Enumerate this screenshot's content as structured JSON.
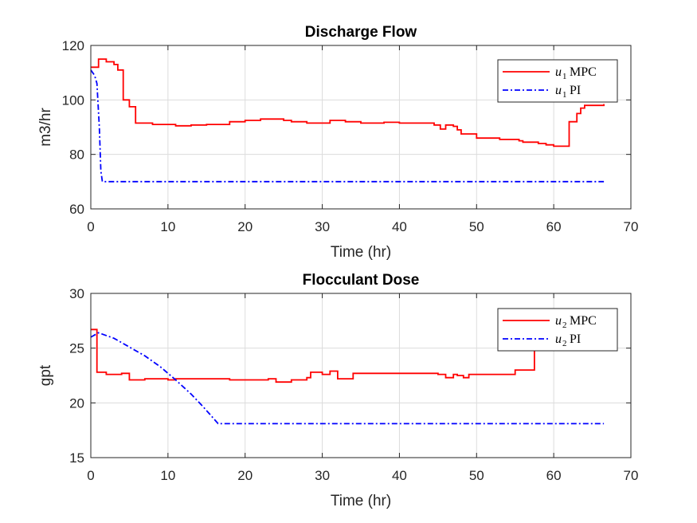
{
  "chart_data": [
    {
      "type": "line",
      "title": "Discharge Flow",
      "xlabel": "Time (hr)",
      "ylabel": "m3/hr",
      "xlim": [
        0,
        70
      ],
      "ylim": [
        60,
        120
      ],
      "xticks": [
        "0",
        "10",
        "20",
        "30",
        "40",
        "50",
        "60",
        "70"
      ],
      "yticks": [
        "60",
        "80",
        "100",
        "120"
      ],
      "grid": true,
      "legend_position": "top-right",
      "series": [
        {
          "name": "MPC",
          "legend_symbol": "u",
          "legend_subscript": "1",
          "color": "#ff0000",
          "style": "solid",
          "step": true,
          "x": [
            0,
            1,
            2,
            3,
            3.5,
            4.2,
            5,
            5.8,
            8,
            11,
            13,
            15,
            18,
            20,
            22,
            25,
            26,
            28,
            31,
            33,
            35,
            38,
            40,
            43,
            44.5,
            45.3,
            46,
            47,
            47.5,
            48,
            50,
            53,
            55.5,
            56,
            58,
            59,
            60,
            61.5,
            62,
            63,
            63.5,
            64,
            66.5
          ],
          "y": [
            112,
            115,
            114,
            113,
            111,
            100,
            97.5,
            91.5,
            91,
            90.5,
            90.8,
            91,
            92,
            92.5,
            93,
            92.5,
            92,
            91.5,
            92.5,
            92,
            91.5,
            91.8,
            91.5,
            91.5,
            90.8,
            89.3,
            90.8,
            90.3,
            89,
            87.5,
            86,
            85.5,
            85,
            84.5,
            84,
            83.5,
            83,
            83,
            92,
            95,
            97,
            98,
            98.5
          ]
        },
        {
          "name": "PI",
          "legend_symbol": "u",
          "legend_subscript": "1",
          "color": "#0000ff",
          "style": "dashdot",
          "step": false,
          "x": [
            0,
            0.5,
            0.8,
            1.1,
            1.3,
            1.5,
            66.5
          ],
          "y": [
            111,
            109,
            106,
            90,
            74,
            70,
            70
          ]
        }
      ]
    },
    {
      "type": "line",
      "title": "Flocculant Dose",
      "xlabel": "Time (hr)",
      "ylabel": "gpt",
      "xlim": [
        0,
        70
      ],
      "ylim": [
        15,
        30
      ],
      "xticks": [
        "0",
        "10",
        "20",
        "30",
        "40",
        "50",
        "60",
        "70"
      ],
      "yticks": [
        "15",
        "20",
        "25",
        "30"
      ],
      "grid": true,
      "legend_position": "top-right",
      "series": [
        {
          "name": "MPC",
          "legend_symbol": "u",
          "legend_subscript": "2",
          "color": "#ff0000",
          "style": "solid",
          "step": true,
          "x": [
            0,
            0.8,
            2,
            4,
            5,
            7,
            10,
            11,
            15,
            18,
            20,
            23,
            24,
            26,
            28,
            28.5,
            30,
            31,
            32,
            34,
            40,
            45,
            46,
            47,
            47.5,
            48.3,
            49,
            52,
            55,
            57.5
          ],
          "y": [
            26.7,
            22.8,
            22.6,
            22.7,
            22.1,
            22.2,
            22.1,
            22.2,
            22.2,
            22.1,
            22.1,
            22.2,
            21.9,
            22.1,
            22.3,
            22.8,
            22.6,
            22.9,
            22.2,
            22.7,
            22.7,
            22.6,
            22.3,
            22.6,
            22.5,
            22.3,
            22.6,
            22.6,
            23,
            24.9
          ]
        },
        {
          "name": "PI",
          "legend_symbol": "u",
          "legend_subscript": "2",
          "color": "#0000ff",
          "style": "dashdot",
          "step": false,
          "x": [
            0,
            1,
            3,
            5,
            7,
            9,
            11,
            13,
            14.5,
            15.5,
            16.5,
            66.5
          ],
          "y": [
            26,
            26.4,
            25.9,
            25.1,
            24.3,
            23.3,
            22.1,
            20.8,
            19.7,
            18.9,
            18.1,
            18.1
          ]
        }
      ]
    }
  ]
}
